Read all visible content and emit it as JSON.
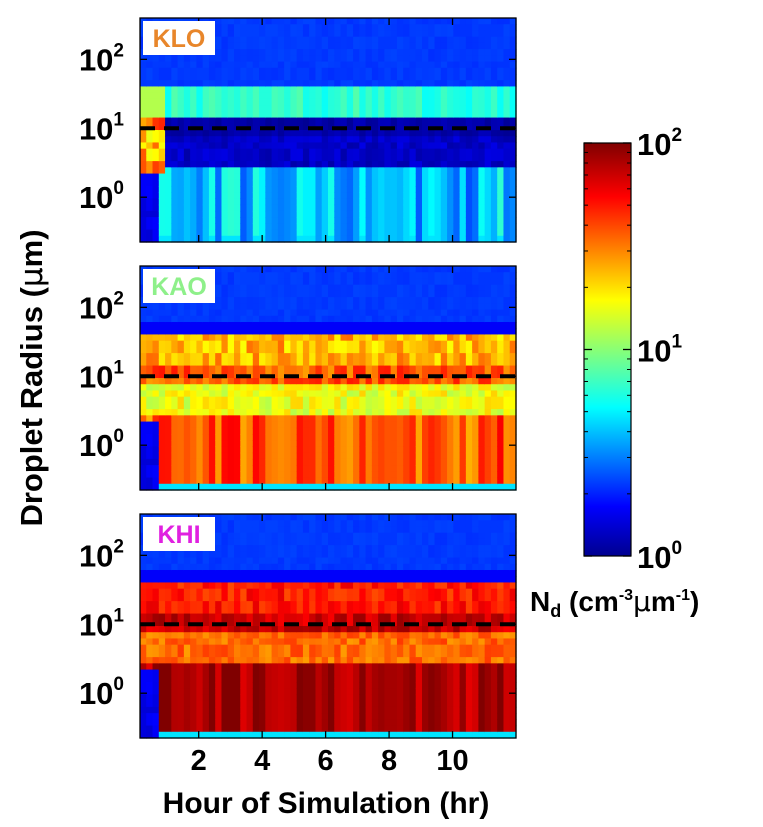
{
  "chart_data": {
    "type": "heatmap",
    "shared": {
      "xlabel": "Hour of Simulation (hr)",
      "ylabel_parts": [
        "Droplet Radius (",
        "μ",
        "m)"
      ],
      "x_range": [
        0.15,
        12.0
      ],
      "x_ticks": [
        2,
        4,
        6,
        8,
        10
      ],
      "x_tick_labels": [
        "2",
        "4",
        "6",
        "8",
        "10"
      ],
      "y_scale": "log",
      "y_range_log10": [
        -0.65,
        2.6
      ],
      "y_ticks_log10": [
        0,
        1,
        2
      ],
      "y_tick_base": "10",
      "y_tick_exps": [
        "0",
        "1",
        "2"
      ],
      "reference_line_radius_um": 10,
      "reference_line_style": "dashed black"
    },
    "panels": [
      {
        "label": "KLO",
        "label_color": "#e8862a",
        "regime": "low"
      },
      {
        "label": "KAO",
        "label_color": "#8ef08a",
        "regime": "mid"
      },
      {
        "label": "KHI",
        "label_color": "#e020e0",
        "regime": "high"
      }
    ],
    "colorbar": {
      "scale": "log",
      "range_log10": [
        0,
        2
      ],
      "ticks_log10": [
        0,
        1,
        2
      ],
      "tick_base": "10",
      "tick_exps": [
        "0",
        "1",
        "2"
      ],
      "colormap": "jet",
      "label_parts": {
        "N": "N",
        "sub": "d",
        "open": " (cm",
        "exp1": "-3",
        "mu": "μ",
        "m": "m",
        "exp2": "-1",
        "close": ")"
      }
    }
  }
}
